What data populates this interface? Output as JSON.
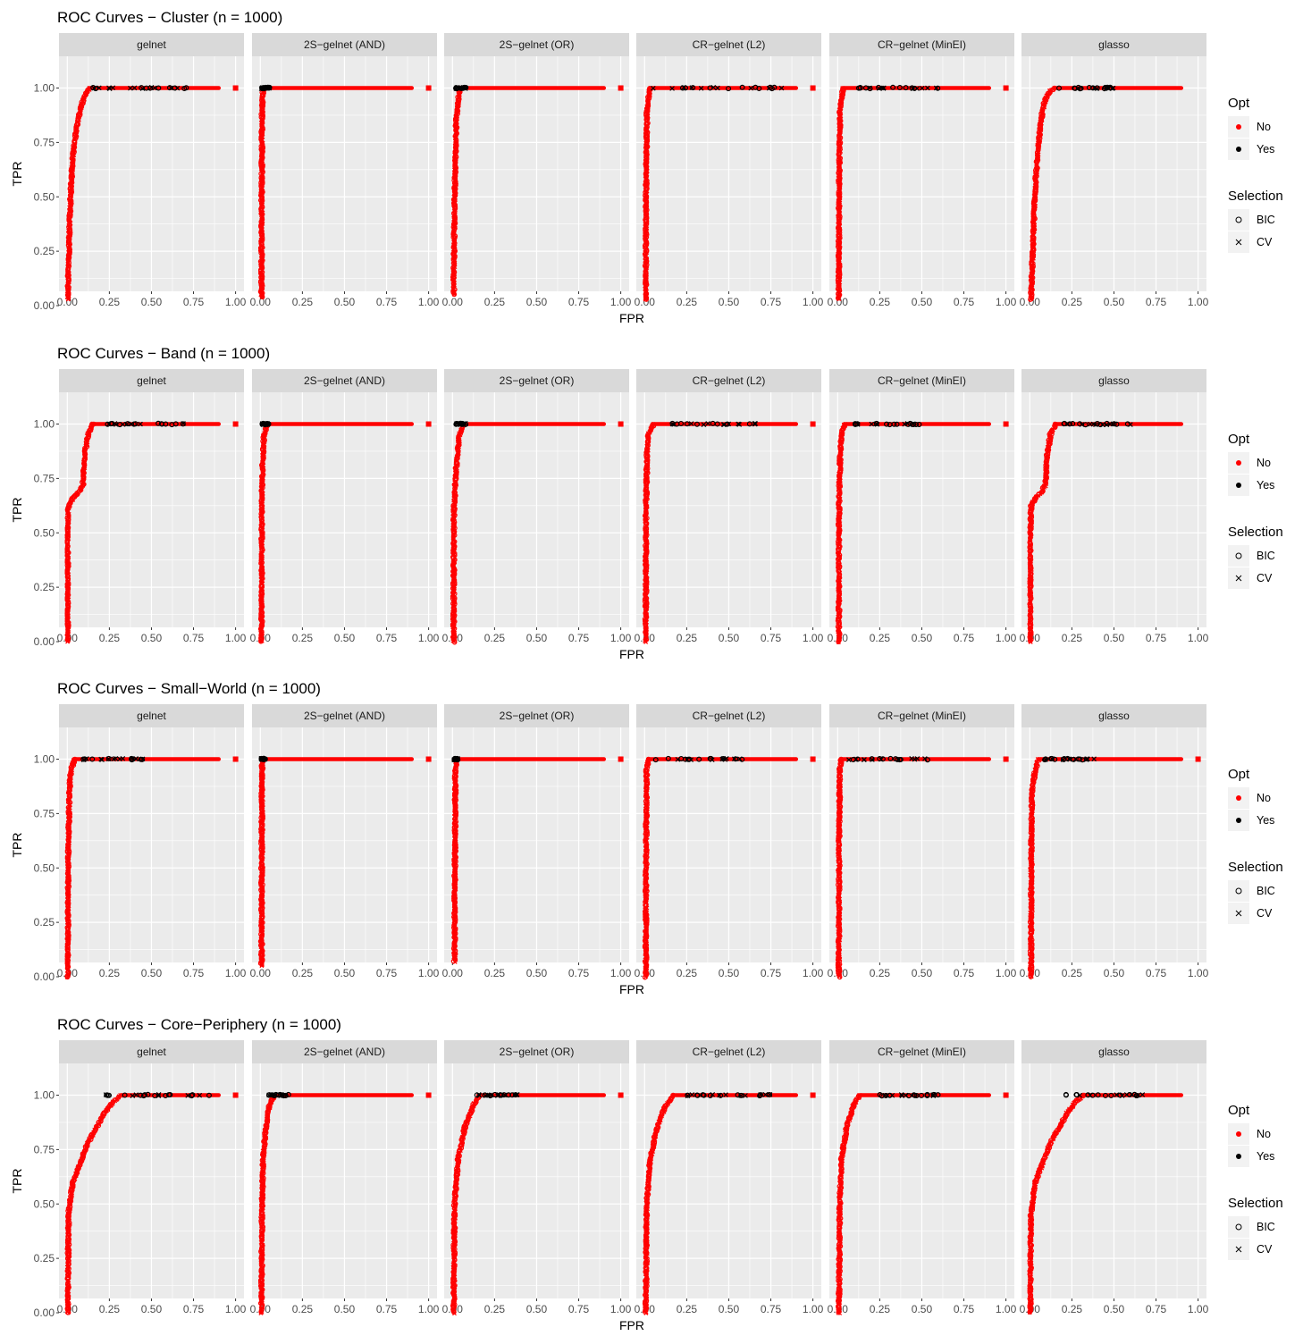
{
  "colors": {
    "no": "#ff0000",
    "yes": "#000000",
    "panel_bg": "#ebebeb",
    "strip_bg": "#d9d9d9",
    "grid": "#ffffff"
  },
  "legend": {
    "opt": {
      "title": "Opt",
      "items": [
        {
          "label": "No",
          "color": "#ff0000"
        },
        {
          "label": "Yes",
          "color": "#000000"
        }
      ]
    },
    "selection": {
      "title": "Selection",
      "items": [
        {
          "label": "BIC",
          "shape": "circle-open"
        },
        {
          "label": "CV",
          "shape": "cross"
        }
      ]
    }
  },
  "chart_data": [
    {
      "type": "scatter",
      "title": "ROC Curves − Cluster (n = 1000)",
      "xlabel": "FPR",
      "ylabel": "TPR",
      "xlim": [
        0,
        1
      ],
      "ylim": [
        0,
        1
      ],
      "x_ticks": [
        "0.00",
        "0.25",
        "0.50",
        "0.75",
        "1.00"
      ],
      "y_ticks": [
        "0.00",
        "0.25",
        "0.50",
        "0.75",
        "1.00"
      ],
      "facets": [
        {
          "name": "gelnet",
          "curve": [
            [
              0,
              0.03
            ],
            [
              0.01,
              0.35
            ],
            [
              0.02,
              0.55
            ],
            [
              0.03,
              0.68
            ],
            [
              0.05,
              0.8
            ],
            [
              0.07,
              0.88
            ],
            [
              0.09,
              0.94
            ],
            [
              0.11,
              0.98
            ],
            [
              0.13,
              1.0
            ],
            [
              0.9,
              1.0
            ],
            [
              1.0,
              1.0
            ]
          ],
          "yes_range": [
            0.12,
            0.75
          ]
        },
        {
          "name": "2S−gelnet (AND)",
          "curve": [
            [
              0.005,
              0.04
            ],
            [
              0.006,
              0.5
            ],
            [
              0.008,
              0.9
            ],
            [
              0.015,
              1.0
            ],
            [
              1.0,
              1.0
            ]
          ],
          "yes_range": [
            0.005,
            0.06
          ]
        },
        {
          "name": "2S−gelnet (OR)",
          "curve": [
            [
              0.005,
              0.05
            ],
            [
              0.01,
              0.5
            ],
            [
              0.02,
              0.85
            ],
            [
              0.04,
              1.0
            ],
            [
              1.0,
              1.0
            ]
          ],
          "yes_range": [
            0.02,
            0.08
          ]
        },
        {
          "name": "CR−gelnet (L2)",
          "curve": [
            [
              0.005,
              0.03
            ],
            [
              0.006,
              0.5
            ],
            [
              0.012,
              0.9
            ],
            [
              0.03,
              1.0
            ],
            [
              1.0,
              1.0
            ]
          ],
          "yes_range": [
            0.04,
            0.82
          ]
        },
        {
          "name": "CR−gelnet (MinEI)",
          "curve": [
            [
              0.005,
              0.03
            ],
            [
              0.006,
              0.5
            ],
            [
              0.012,
              0.9
            ],
            [
              0.03,
              1.0
            ],
            [
              1.0,
              1.0
            ]
          ],
          "yes_range": [
            0.12,
            0.6
          ]
        },
        {
          "name": "glasso",
          "curve": [
            [
              0.005,
              0.03
            ],
            [
              0.02,
              0.35
            ],
            [
              0.03,
              0.55
            ],
            [
              0.05,
              0.75
            ],
            [
              0.07,
              0.88
            ],
            [
              0.09,
              0.95
            ],
            [
              0.12,
              0.99
            ],
            [
              0.15,
              1.0
            ],
            [
              0.9,
              1.0
            ]
          ],
          "yes_range": [
            0.15,
            0.5
          ]
        }
      ]
    },
    {
      "type": "scatter",
      "title": "ROC Curves − Band (n = 1000)",
      "xlabel": "FPR",
      "ylabel": "TPR",
      "xlim": [
        0,
        1
      ],
      "ylim": [
        0,
        1
      ],
      "x_ticks": [
        "0.00",
        "0.25",
        "0.50",
        "0.75",
        "1.00"
      ],
      "y_ticks": [
        "0.00",
        "0.25",
        "0.50",
        "0.75",
        "1.00"
      ],
      "facets": [
        {
          "name": "gelnet",
          "curve": [
            [
              0.0,
              0.0
            ],
            [
              0.0,
              0.5
            ],
            [
              0.005,
              0.62
            ],
            [
              0.03,
              0.66
            ],
            [
              0.07,
              0.69
            ],
            [
              0.09,
              0.72
            ],
            [
              0.1,
              0.85
            ],
            [
              0.12,
              0.95
            ],
            [
              0.15,
              1.0
            ],
            [
              0.9,
              1.0
            ],
            [
              1.0,
              1.0
            ]
          ],
          "yes_range": [
            0.2,
            0.7
          ]
        },
        {
          "name": "2S−gelnet (AND)",
          "curve": [
            [
              0.005,
              0.0
            ],
            [
              0.006,
              0.6
            ],
            [
              0.01,
              0.8
            ],
            [
              0.02,
              0.95
            ],
            [
              0.04,
              1.0
            ],
            [
              1.0,
              1.0
            ]
          ],
          "yes_range": [
            0.01,
            0.05
          ]
        },
        {
          "name": "2S−gelnet (OR)",
          "curve": [
            [
              0.005,
              0.0
            ],
            [
              0.006,
              0.6
            ],
            [
              0.02,
              0.8
            ],
            [
              0.04,
              0.95
            ],
            [
              0.06,
              1.0
            ],
            [
              1.0,
              1.0
            ]
          ],
          "yes_range": [
            0.02,
            0.08
          ]
        },
        {
          "name": "CR−gelnet (L2)",
          "curve": [
            [
              0.005,
              0.0
            ],
            [
              0.006,
              0.6
            ],
            [
              0.012,
              0.85
            ],
            [
              0.02,
              0.95
            ],
            [
              0.05,
              1.0
            ],
            [
              1.0,
              1.0
            ]
          ],
          "yes_range": [
            0.15,
            0.7
          ]
        },
        {
          "name": "CR−gelnet (MinEI)",
          "curve": [
            [
              0.005,
              0.0
            ],
            [
              0.006,
              0.6
            ],
            [
              0.012,
              0.85
            ],
            [
              0.02,
              0.95
            ],
            [
              0.04,
              1.0
            ],
            [
              1.0,
              1.0
            ]
          ],
          "yes_range": [
            0.1,
            0.5
          ]
        },
        {
          "name": "glasso",
          "curve": [
            [
              0.0,
              0.0
            ],
            [
              0.0,
              0.5
            ],
            [
              0.005,
              0.62
            ],
            [
              0.03,
              0.66
            ],
            [
              0.07,
              0.69
            ],
            [
              0.09,
              0.72
            ],
            [
              0.1,
              0.85
            ],
            [
              0.12,
              0.95
            ],
            [
              0.15,
              1.0
            ],
            [
              0.9,
              1.0
            ]
          ],
          "yes_range": [
            0.2,
            0.6
          ]
        }
      ]
    },
    {
      "type": "scatter",
      "title": "ROC Curves − Small−World (n = 1000)",
      "xlabel": "FPR",
      "ylabel": "TPR",
      "xlim": [
        0,
        1
      ],
      "ylim": [
        0,
        1
      ],
      "x_ticks": [
        "0.00",
        "0.25",
        "0.50",
        "0.75",
        "1.00"
      ],
      "y_ticks": [
        "0.00",
        "0.25",
        "0.50",
        "0.75",
        "1.00"
      ],
      "facets": [
        {
          "name": "gelnet",
          "curve": [
            [
              0.0,
              0.0
            ],
            [
              0.003,
              0.5
            ],
            [
              0.01,
              0.85
            ],
            [
              0.02,
              0.95
            ],
            [
              0.04,
              1.0
            ],
            [
              1.0,
              1.0
            ]
          ],
          "yes_range": [
            0.08,
            0.45
          ]
        },
        {
          "name": "2S−gelnet (AND)",
          "curve": [
            [
              0.005,
              0.05
            ],
            [
              0.006,
              0.5
            ],
            [
              0.008,
              0.95
            ],
            [
              0.01,
              1.0
            ],
            [
              1.0,
              1.0
            ]
          ],
          "yes_range": [
            0.005,
            0.03
          ]
        },
        {
          "name": "2S−gelnet (OR)",
          "curve": [
            [
              0.01,
              0.07
            ],
            [
              0.012,
              0.5
            ],
            [
              0.015,
              0.95
            ],
            [
              0.02,
              1.0
            ],
            [
              1.0,
              1.0
            ]
          ],
          "yes_range": [
            0.005,
            0.04
          ]
        },
        {
          "name": "CR−gelnet (L2)",
          "curve": [
            [
              0.005,
              0.0
            ],
            [
              0.006,
              0.5
            ],
            [
              0.01,
              0.95
            ],
            [
              0.02,
              1.0
            ],
            [
              1.0,
              1.0
            ]
          ],
          "yes_range": [
            0.05,
            0.6
          ]
        },
        {
          "name": "CR−gelnet (MinEI)",
          "curve": [
            [
              0.005,
              0.0
            ],
            [
              0.006,
              0.5
            ],
            [
              0.01,
              0.95
            ],
            [
              0.02,
              1.0
            ],
            [
              1.0,
              1.0
            ]
          ],
          "yes_range": [
            0.05,
            0.55
          ]
        },
        {
          "name": "glasso",
          "curve": [
            [
              0.005,
              0.0
            ],
            [
              0.006,
              0.5
            ],
            [
              0.01,
              0.85
            ],
            [
              0.03,
              0.95
            ],
            [
              0.05,
              1.0
            ],
            [
              1.0,
              1.0
            ]
          ],
          "yes_range": [
            0.08,
            0.4
          ]
        }
      ]
    },
    {
      "type": "scatter",
      "title": "ROC Curves − Core−Periphery (n = 1000)",
      "xlabel": "FPR",
      "ylabel": "TPR",
      "xlim": [
        0,
        1
      ],
      "ylim": [
        0,
        1
      ],
      "x_ticks": [
        "0.00",
        "0.25",
        "0.50",
        "0.75",
        "1.00"
      ],
      "y_ticks": [
        "0.00",
        "0.25",
        "0.50",
        "0.75",
        "1.00"
      ],
      "facets": [
        {
          "name": "gelnet",
          "curve": [
            [
              0.0,
              0.0
            ],
            [
              0.005,
              0.45
            ],
            [
              0.03,
              0.6
            ],
            [
              0.07,
              0.68
            ],
            [
              0.12,
              0.78
            ],
            [
              0.17,
              0.85
            ],
            [
              0.22,
              0.92
            ],
            [
              0.27,
              0.97
            ],
            [
              0.32,
              1.0
            ],
            [
              1.0,
              1.0
            ]
          ],
          "yes_range": [
            0.2,
            0.85
          ]
        },
        {
          "name": "2S−gelnet (AND)",
          "curve": [
            [
              0.005,
              0.0
            ],
            [
              0.008,
              0.5
            ],
            [
              0.015,
              0.72
            ],
            [
              0.03,
              0.85
            ],
            [
              0.05,
              0.95
            ],
            [
              0.08,
              1.0
            ],
            [
              1.0,
              1.0
            ]
          ],
          "yes_range": [
            0.05,
            0.2
          ]
        },
        {
          "name": "2S−gelnet (OR)",
          "curve": [
            [
              0.005,
              0.0
            ],
            [
              0.01,
              0.5
            ],
            [
              0.03,
              0.7
            ],
            [
              0.07,
              0.85
            ],
            [
              0.12,
              0.95
            ],
            [
              0.16,
              1.0
            ],
            [
              1.0,
              1.0
            ]
          ],
          "yes_range": [
            0.12,
            0.4
          ]
        },
        {
          "name": "CR−gelnet (L2)",
          "curve": [
            [
              0.005,
              0.0
            ],
            [
              0.01,
              0.5
            ],
            [
              0.03,
              0.7
            ],
            [
              0.07,
              0.85
            ],
            [
              0.12,
              0.95
            ],
            [
              0.17,
              1.0
            ],
            [
              1.0,
              1.0
            ]
          ],
          "yes_range": [
            0.25,
            0.75
          ]
        },
        {
          "name": "CR−gelnet (MinEI)",
          "curve": [
            [
              0.005,
              0.0
            ],
            [
              0.01,
              0.5
            ],
            [
              0.02,
              0.7
            ],
            [
              0.05,
              0.85
            ],
            [
              0.09,
              0.95
            ],
            [
              0.13,
              1.0
            ],
            [
              1.0,
              1.0
            ]
          ],
          "yes_range": [
            0.25,
            0.6
          ]
        },
        {
          "name": "glasso",
          "curve": [
            [
              0.0,
              0.0
            ],
            [
              0.005,
              0.45
            ],
            [
              0.03,
              0.6
            ],
            [
              0.07,
              0.68
            ],
            [
              0.12,
              0.78
            ],
            [
              0.17,
              0.85
            ],
            [
              0.22,
              0.92
            ],
            [
              0.27,
              0.97
            ],
            [
              0.32,
              1.0
            ],
            [
              0.9,
              1.0
            ]
          ],
          "yes_range": [
            0.2,
            0.7
          ]
        }
      ]
    }
  ]
}
